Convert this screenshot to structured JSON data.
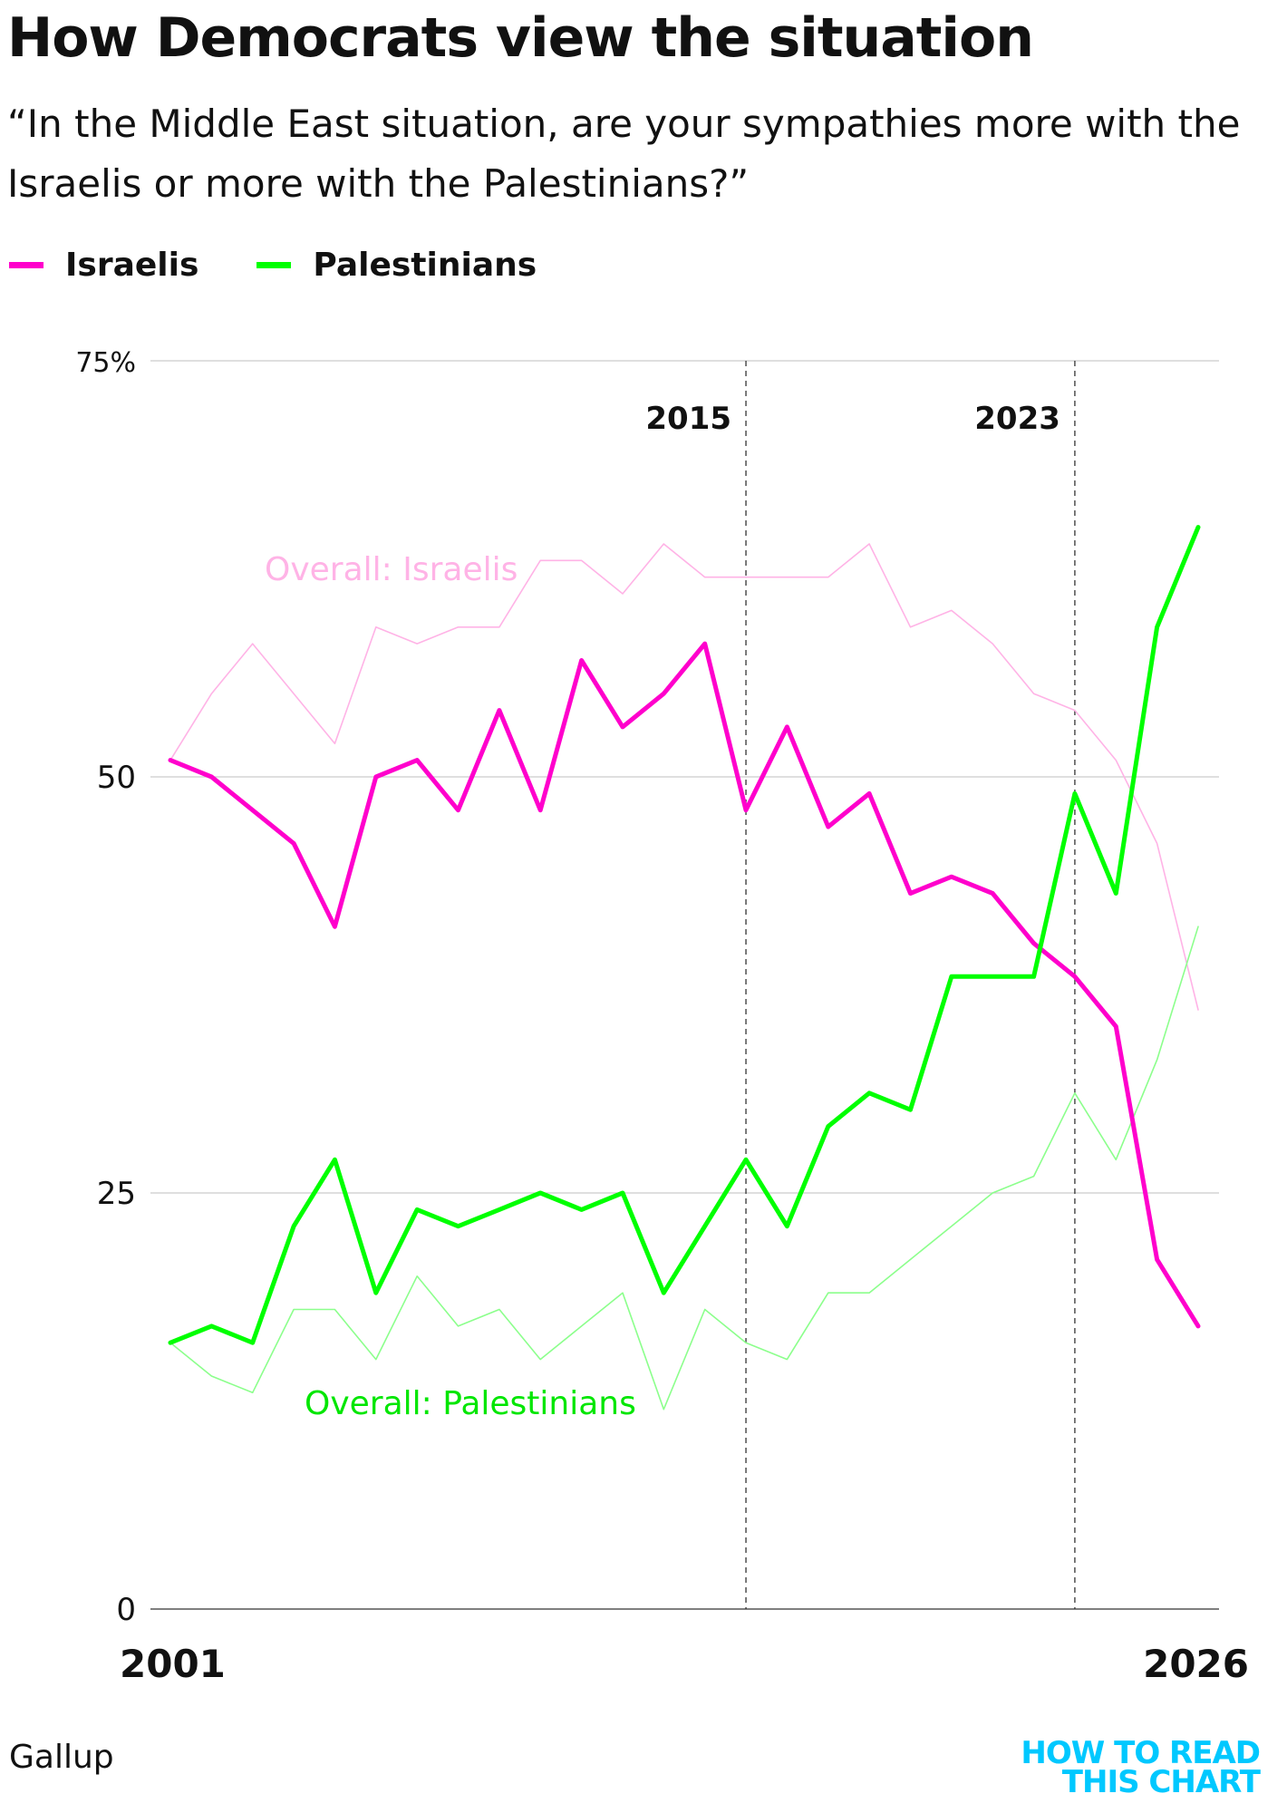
{
  "header": {
    "title": "How Democrats view the situation",
    "subtitle": "“In the Middle East situation, are your sympathies more with the Israelis or more with the Palestinians?”"
  },
  "legend": [
    {
      "label": "Israelis",
      "color": "#ff00cc"
    },
    {
      "label": "Palestinians",
      "color": "#00ff00"
    }
  ],
  "colors": {
    "israelis": "#ff00cc",
    "palestinians": "#00ff00",
    "overall_israelis": "#ffb3e6",
    "overall_palestinians": "#8cff8c",
    "grid": "#cccccc",
    "annotation_line": "#333333",
    "brand": "#00c8ff"
  },
  "chart_data": {
    "type": "line",
    "x": [
      2001,
      2002,
      2003,
      2004,
      2005,
      2006,
      2007,
      2008,
      2009,
      2010,
      2011,
      2012,
      2013,
      2014,
      2015,
      2016,
      2017,
      2018,
      2019,
      2020,
      2021,
      2022,
      2023,
      2024,
      2025,
      2026
    ],
    "x_tick_labels": [
      "2001",
      "2026"
    ],
    "y_tick_labels": [
      "75%",
      "50",
      "25",
      "0"
    ],
    "y_ticks": [
      75,
      50,
      25,
      0
    ],
    "ylim": [
      0,
      75
    ],
    "series": [
      {
        "name": "Israelis",
        "role": "democrats",
        "color": "#ff00cc",
        "values": [
          51,
          50,
          48,
          46,
          41,
          50,
          51,
          48,
          54,
          48,
          57,
          53,
          55,
          58,
          48,
          53,
          47,
          49,
          43,
          44,
          43,
          40,
          38,
          35,
          21,
          17
        ]
      },
      {
        "name": "Palestinians",
        "role": "democrats",
        "color": "#00ff00",
        "values": [
          16,
          17,
          16,
          23,
          27,
          19,
          24,
          23,
          24,
          25,
          24,
          25,
          19,
          23,
          27,
          23,
          29,
          31,
          30,
          38,
          38,
          38,
          49,
          43,
          59,
          65
        ]
      },
      {
        "name": "Overall: Israelis",
        "role": "overall",
        "color": "#ffb3e6",
        "values": [
          51,
          55,
          58,
          55,
          52,
          59,
          58,
          59,
          59,
          63,
          63,
          61,
          64,
          62,
          62,
          62,
          62,
          64,
          59,
          60,
          58,
          55,
          54,
          51,
          46,
          36
        ]
      },
      {
        "name": "Overall: Palestinians",
        "role": "overall",
        "color": "#8cff8c",
        "values": [
          16,
          14,
          13,
          18,
          18,
          15,
          20,
          17,
          18,
          15,
          17,
          19,
          12,
          18,
          16,
          15,
          19,
          19,
          21,
          23,
          25,
          26,
          31,
          27,
          33,
          41
        ]
      }
    ],
    "annotations": [
      {
        "label": "2015",
        "x": 2015
      },
      {
        "label": "2023",
        "x": 2023
      }
    ],
    "grid": true,
    "legend_position": "top-left"
  },
  "footer": {
    "source": "Gallup",
    "brand_line1": "HOW TO READ",
    "brand_line2": "THIS CHART"
  }
}
